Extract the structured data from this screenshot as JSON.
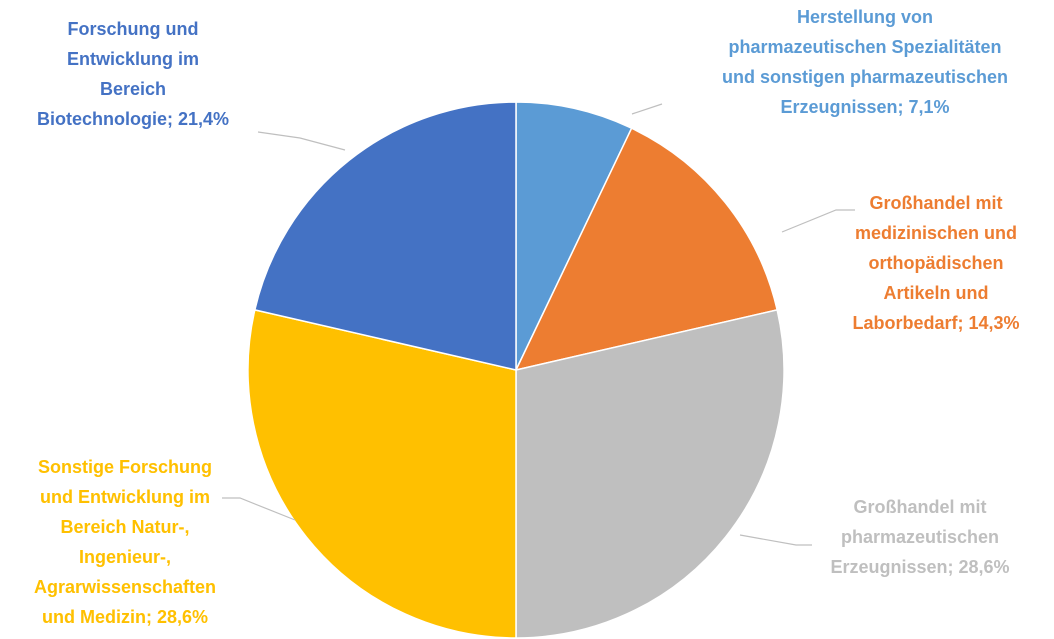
{
  "chart_data": {
    "type": "pie",
    "values": [
      7.1,
      14.3,
      28.6,
      28.6,
      21.4
    ],
    "value_labels": [
      "Herstellung von\npharmazeutischen Spezialitäten\nund sonstigen pharmazeutischen\nErzeugnissen; 7,1%",
      "Großhandel mit\nmedizinischen und\northopädischen\nArtikeln und\nLaborbedarf; 14,3%",
      "Großhandel mit\npharmazeutischen\nErzeugnissen; 28,6%",
      "Sonstige Forschung\nund Entwicklung im\nBereich Natur-,\nIngenieur-,\nAgrarwissenschaften\nund Medizin; 28,6%",
      "Forschung und\nEntwicklung im\nBereich\nBiotechnologie; 21,4%"
    ],
    "colors": [
      "#5B9BD5",
      "#ED7D31",
      "#BFBFBF",
      "#FFC000",
      "#4472C4"
    ]
  }
}
